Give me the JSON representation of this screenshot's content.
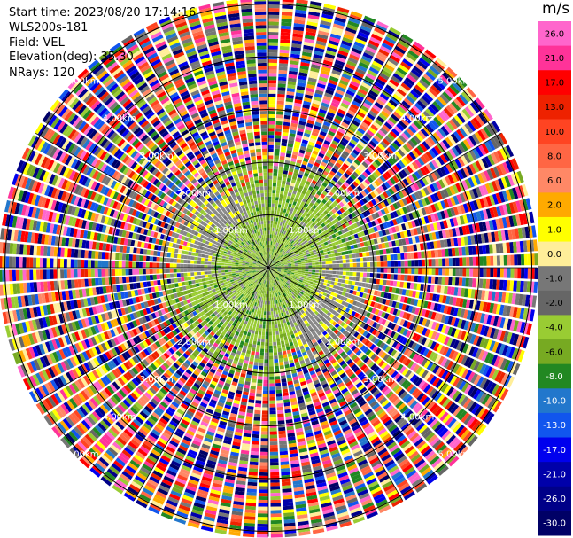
{
  "header": {
    "start_time": "Start time: 2023/08/20 17:14:16",
    "instrument": "WLS200s-181",
    "field": "Field: VEL",
    "elevation": "Elevation(deg): 35.30",
    "nrays": "NRays: 120"
  },
  "chart_data": {
    "type": "polar-ppi",
    "field": "VEL",
    "unit": "m/s",
    "n_rays": 120,
    "range_rings_km": [
      1.0,
      2.0,
      3.0,
      4.0,
      5.0
    ],
    "ring_label_text": [
      "1.00km",
      "2.00km",
      "3.00km",
      "4.00km",
      "5.00km"
    ],
    "max_range_km": 5.1,
    "colorbar": {
      "ticks": [
        "26.0",
        "21.0",
        "17.0",
        "13.0",
        "10.0",
        "8.0",
        "6.0",
        "2.0",
        "1.0",
        "0.0",
        "-1.0",
        "-2.0",
        "-4.0",
        "-6.0",
        "-8.0",
        "-10.0",
        "-13.0",
        "-17.0",
        "-21.0",
        "-26.0",
        "-30.0"
      ],
      "boundaries": [
        30,
        26,
        21,
        17,
        13,
        10,
        8,
        6,
        2,
        1,
        0,
        -1,
        -2,
        -4,
        -6,
        -8,
        -10,
        -13,
        -17,
        -21,
        -26,
        -30
      ],
      "colors": [
        "#ff66cc",
        "#ff3399",
        "#ff0000",
        "#ee2200",
        "#ff4422",
        "#ff6644",
        "#ff8866",
        "#ffaa00",
        "#ffff00",
        "#ffee99",
        "#777777",
        "#666666",
        "#99cc33",
        "#77aa22",
        "#228822",
        "#2277cc",
        "#1155ee",
        "#0000ee",
        "#0000aa",
        "#000088",
        "#000066"
      ]
    },
    "near_field_mean_ms": -1.5,
    "far_field": "noise"
  }
}
